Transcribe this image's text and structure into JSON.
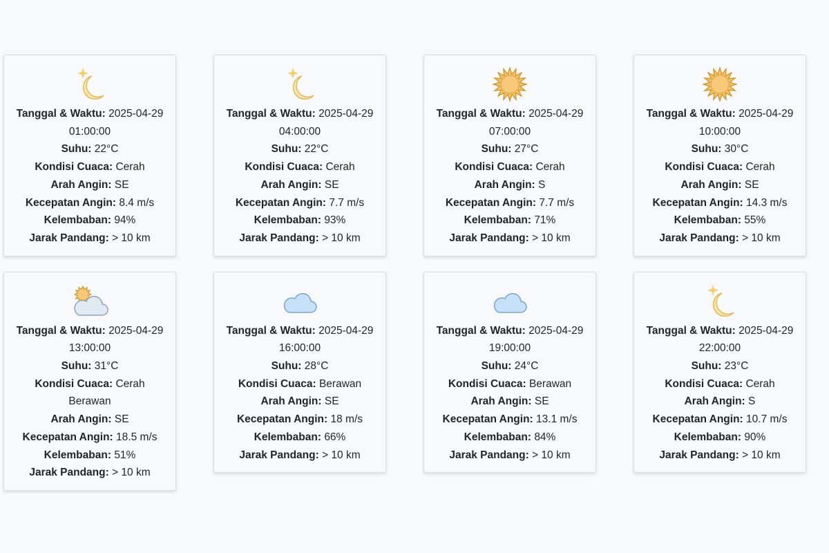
{
  "labels": [
    "Tanggal & Waktu:",
    "Suhu:",
    "Kondisi Cuaca:",
    "Arah Angin:",
    "Kecepatan Angin:",
    "Kelembaban:",
    "Jarak Pandang:"
  ],
  "cards": [
    {
      "fields": [
        "2025-04-29 01:00:00",
        "22°C",
        "Cerah",
        "SE",
        "8.4 m/s",
        "94%",
        "> 10 km"
      ]
    },
    {
      "fields": [
        "2025-04-29 04:00:00",
        "22°C",
        "Cerah",
        "SE",
        "7.7 m/s",
        "93%",
        "> 10 km"
      ]
    },
    {
      "fields": [
        "2025-04-29 07:00:00",
        "27°C",
        "Cerah",
        "S",
        "7.7 m/s",
        "71%",
        "> 10 km"
      ]
    },
    {
      "fields": [
        "2025-04-29 10:00:00",
        "30°C",
        "Cerah",
        "SE",
        "14.3 m/s",
        "55%",
        "> 10 km"
      ]
    },
    {
      "fields": [
        "2025-04-29 13:00:00",
        "31°C",
        "Cerah Berawan",
        "SE",
        "18.5 m/s",
        "51%",
        "> 10 km"
      ]
    },
    {
      "fields": [
        "2025-04-29 16:00:00",
        "28°C",
        "Berawan",
        "SE",
        "18 m/s",
        "66%",
        "> 10 km"
      ]
    },
    {
      "fields": [
        "2025-04-29 19:00:00",
        "24°C",
        "Berawan",
        "SE",
        "13.1 m/s",
        "84%",
        "> 10 km"
      ]
    },
    {
      "fields": [
        "2025-04-29 22:00:00",
        "23°C",
        "Cerah",
        "S",
        "10.7 m/s",
        "90%",
        "> 10 km"
      ]
    }
  ]
}
